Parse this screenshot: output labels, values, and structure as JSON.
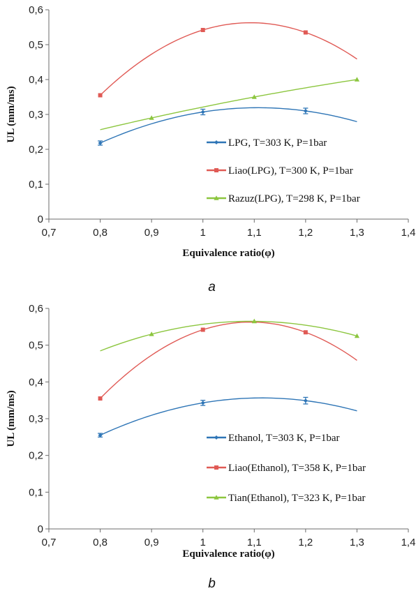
{
  "chart_data": [
    {
      "type": "scatter",
      "caption": "a",
      "xlabel": "Equivalence ratio(φ)",
      "ylabel": "UL (mm/ms)",
      "xlim": [
        0.7,
        1.4
      ],
      "ylim": [
        0,
        0.6
      ],
      "x_ticks": [
        "0,7",
        "0,8",
        "0,9",
        "1",
        "1,1",
        "1,2",
        "1,3",
        "1,4"
      ],
      "y_ticks": [
        "0",
        "0,1",
        "0,2",
        "0,3",
        "0,4",
        "0,5",
        "0,6"
      ],
      "grid": false,
      "legend_position": "right",
      "series": [
        {
          "name": "LPG, T=303 K, P=1bar",
          "color": "#2e75b6",
          "marker": "diamond",
          "x": [
            0.8,
            1.0,
            1.2
          ],
          "y": [
            0.218,
            0.307,
            0.31
          ],
          "error": [
            0.006,
            0.008,
            0.008
          ],
          "trendline": "poly2",
          "trend_range": [
            0.8,
            1.3
          ]
        },
        {
          "name": "Liao(LPG), T=300 K, P=1bar",
          "color": "#e05a55",
          "marker": "square",
          "x": [
            0.8,
            1.0,
            1.2
          ],
          "y": [
            0.355,
            0.542,
            0.535
          ],
          "trendline": "poly2",
          "trend_range": [
            0.8,
            1.3
          ]
        },
        {
          "name": "Razuz(LPG), T=298 K, P=1bar",
          "color": "#8cc63f",
          "marker": "triangle",
          "x": [
            0.9,
            1.1,
            1.3
          ],
          "y": [
            0.29,
            0.35,
            0.4
          ],
          "trendline": "poly2",
          "trend_range": [
            0.8,
            1.3
          ]
        }
      ]
    },
    {
      "type": "scatter",
      "caption": "b",
      "xlabel": "Equivalence ratio(φ)",
      "ylabel": "UL (mm/ms)",
      "xlim": [
        0.7,
        1.4
      ],
      "ylim": [
        0,
        0.6
      ],
      "x_ticks": [
        "0,7",
        "0,8",
        "0,9",
        "1",
        "1,1",
        "1,2",
        "1,3",
        "1,4"
      ],
      "y_ticks": [
        "0",
        "0,1",
        "0,2",
        "0,3",
        "0,4",
        "0,5",
        "0,6"
      ],
      "grid": false,
      "legend_position": "right",
      "series": [
        {
          "name": "Ethanol, T=303 K, P=1bar",
          "color": "#2e75b6",
          "marker": "diamond",
          "x": [
            0.8,
            1.0,
            1.2
          ],
          "y": [
            0.255,
            0.343,
            0.349
          ],
          "error": [
            0.005,
            0.007,
            0.009
          ],
          "trendline": "poly2",
          "trend_range": [
            0.8,
            1.3
          ]
        },
        {
          "name": "Liao(Ethanol), T=358 K, P=1bar",
          "color": "#e05a55",
          "marker": "square",
          "x": [
            0.8,
            1.0,
            1.2
          ],
          "y": [
            0.355,
            0.542,
            0.535
          ],
          "trendline": "poly2",
          "trend_range": [
            0.8,
            1.3
          ]
        },
        {
          "name": "Tian(Ethanol), T=323 K, P=1bar",
          "color": "#8cc63f",
          "marker": "triangle",
          "x": [
            0.9,
            1.1,
            1.3
          ],
          "y": [
            0.53,
            0.565,
            0.525
          ],
          "trendline": "poly2",
          "trend_range": [
            0.8,
            1.3
          ]
        }
      ]
    }
  ]
}
